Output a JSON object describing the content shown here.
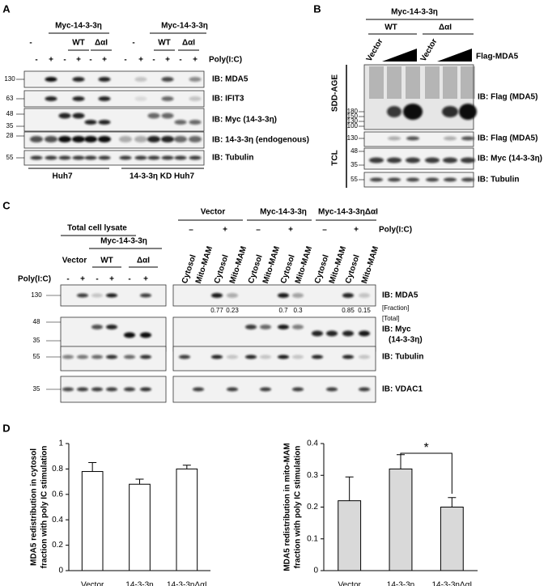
{
  "panel_a": {
    "label": "A",
    "groups": [
      "Myc-14-3-3η",
      "Myc-14-3-3η"
    ],
    "lanes": [
      "-",
      "WT",
      "ΔαI",
      "-",
      "WT",
      "ΔαI"
    ],
    "treatment_label": "Poly(I:C)",
    "treatment": [
      "-",
      "+",
      "-",
      "+",
      "-",
      "+",
      "-",
      "+",
      "-",
      "+",
      "-",
      "+"
    ],
    "blots": [
      {
        "label": "IB: MDA5",
        "markers": [
          130
        ]
      },
      {
        "label": "IB: IFIT3",
        "markers": [
          63
        ]
      },
      {
        "label": "IB: Myc (14-3-3η)",
        "markers": [
          48,
          35
        ]
      },
      {
        "label": "IB: 14-3-3η (endogenous)",
        "markers": [
          28
        ]
      },
      {
        "label": "IB: Tubulin",
        "markers": [
          55
        ]
      }
    ],
    "cells": [
      "Huh7",
      "14-3-3η KD Huh7"
    ]
  },
  "panel_b": {
    "label": "B",
    "group": "Myc-14-3-3η",
    "lanes": [
      "WT",
      "ΔαI"
    ],
    "vector": [
      "Vector",
      "Vector"
    ],
    "titration_label": "Flag-MDA5",
    "sections": [
      "SDD-AGE",
      "TCL"
    ],
    "blots": [
      {
        "label": "IB: Flag (MDA5)",
        "markers": [
          180,
          150,
          130,
          100
        ]
      },
      {
        "label": "IB: Flag (MDA5)",
        "markers": [
          130
        ]
      },
      {
        "label": "IB: Myc (14-3-3η)",
        "markers": [
          48,
          35
        ]
      },
      {
        "label": "IB: Tubulin",
        "markers": [
          55
        ]
      }
    ]
  },
  "panel_c": {
    "label": "C",
    "left_title": "Total cell lysate",
    "left_group": "Myc-14-3-3η",
    "left_lanes": [
      "Vector",
      "WT",
      "ΔαI"
    ],
    "treatment_label": "Poly(I:C)",
    "left_treatment": [
      "-",
      "+",
      "-",
      "+",
      "-",
      "+"
    ],
    "right_groups": [
      "Vector",
      "Myc-14-3-3η",
      "Myc-14-3-3ηΔαI"
    ],
    "right_treatment": [
      "–",
      "+",
      "–",
      "+",
      "–",
      "+"
    ],
    "right_treatment_label": "Poly(I:C)",
    "fractions": [
      "Cytosol",
      "Mito-MAM",
      "Cytosol",
      "Mito-MAM",
      "Cytosol",
      "Mito-MAM",
      "Cytosol",
      "Mito-MAM",
      "Cytosol",
      "Mito-MAM",
      "Cytosol",
      "Mito-MAM"
    ],
    "ratios": [
      0.77,
      0.23,
      0.7,
      0.3,
      0.85,
      0.15
    ],
    "ratio_labels": [
      "[Fraction]",
      "[Total]"
    ],
    "blots": [
      {
        "label": "IB: MDA5",
        "markers": [
          130
        ]
      },
      {
        "label": "IB: Myc",
        "label2": "(14-3-3η)",
        "markers": [
          48,
          35
        ]
      },
      {
        "label": "IB: Tubulin",
        "markers": [
          55
        ]
      },
      {
        "label": "IB: VDAC1",
        "markers": [
          35
        ]
      }
    ]
  },
  "panel_d_label": "D",
  "chart_data": [
    {
      "type": "bar",
      "ylabel": [
        "MDA5 redistribution in cytosol",
        "fraction with poly IC stimulation"
      ],
      "categories": [
        "Vector",
        "14-3-3η",
        "14-3-3ηΔαI"
      ],
      "values": [
        0.78,
        0.68,
        0.8
      ],
      "errors": [
        0.07,
        0.04,
        0.03
      ],
      "color": "#ffffff",
      "ylim": [
        0,
        1
      ],
      "yticks": [
        0,
        0.2,
        0.4,
        0.6,
        0.8,
        1
      ]
    },
    {
      "type": "bar",
      "ylabel": [
        "MDA5 redistribution in mito-MAM",
        "fraction with poly IC stimulation"
      ],
      "categories": [
        "Vector",
        "14-3-3η",
        "14-3-3ηΔαI"
      ],
      "values": [
        0.22,
        0.32,
        0.2
      ],
      "errors": [
        0.075,
        0.045,
        0.03
      ],
      "color": "#d9d9d9",
      "ylim": [
        0,
        0.4
      ],
      "yticks": [
        0,
        0.1,
        0.2,
        0.3,
        0.4
      ],
      "annotation": "*"
    }
  ]
}
